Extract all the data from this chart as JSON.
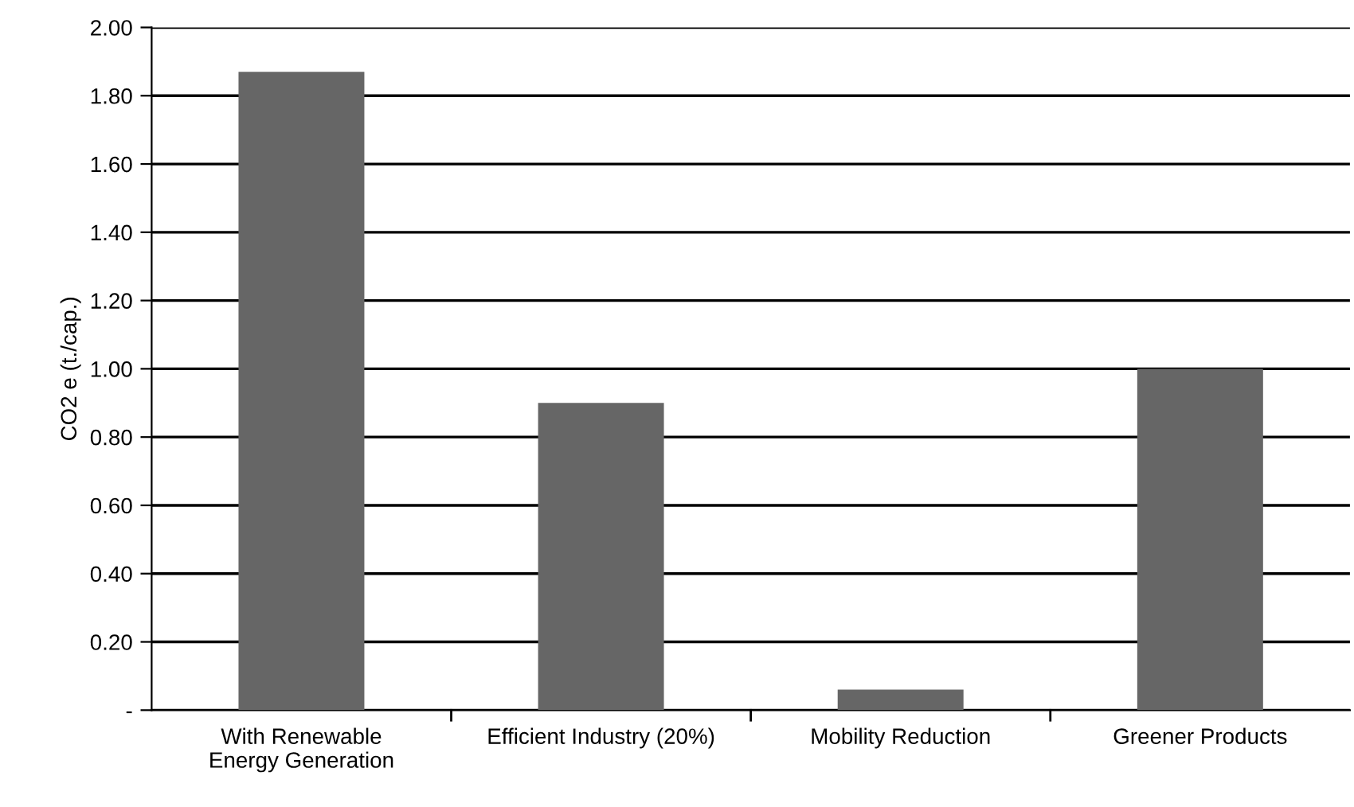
{
  "chart_data": {
    "type": "bar",
    "ylabel": "CO2 e (t./cap.)",
    "categories": [
      "With Renewable\nEnergy Generation",
      "Efficient Industry (20%)",
      "Mobility Reduction",
      "Greener Products"
    ],
    "values": [
      1.87,
      0.9,
      0.06,
      1.0
    ],
    "color": "#666666",
    "ylim": [
      0,
      2
    ],
    "yticks": [
      {
        "value": 0,
        "label": "-"
      },
      {
        "value": 0.2,
        "label": "0.20"
      },
      {
        "value": 0.4,
        "label": "0.40"
      },
      {
        "value": 0.6,
        "label": "0.60"
      },
      {
        "value": 0.8,
        "label": "0.80"
      },
      {
        "value": 1.0,
        "label": "1.00"
      },
      {
        "value": 1.2,
        "label": "1.20"
      },
      {
        "value": 1.4,
        "label": "1.40"
      },
      {
        "value": 1.6,
        "label": "1.60"
      },
      {
        "value": 1.8,
        "label": "1.80"
      },
      {
        "value": 2.0,
        "label": "2.00"
      }
    ],
    "grid": "y"
  }
}
